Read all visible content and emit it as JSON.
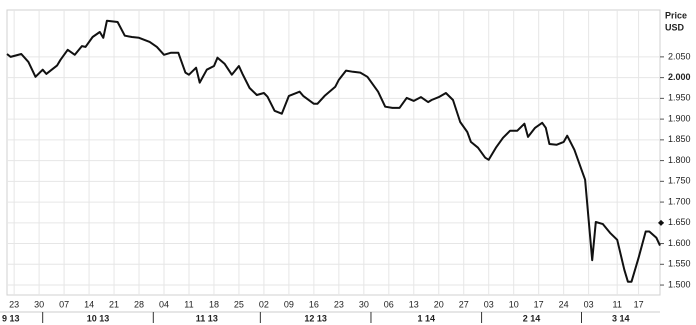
{
  "chart_data": {
    "type": "line",
    "y_label": "Price",
    "y_unit": "USD",
    "x": [
      "2013-09-21",
      "2013-09-22",
      "2013-09-25",
      "2013-09-27",
      "2013-09-29",
      "2013-10-01",
      "2013-10-02",
      "2013-10-05",
      "2013-10-06",
      "2013-10-08",
      "2013-10-10",
      "2013-10-12",
      "2013-10-13",
      "2013-10-15",
      "2013-10-17",
      "2013-10-18",
      "2013-10-19",
      "2013-10-22",
      "2013-10-24",
      "2013-10-26",
      "2013-10-28",
      "2013-10-31",
      "2013-11-02",
      "2013-11-04",
      "2013-11-06",
      "2013-11-08",
      "2013-11-10",
      "2013-11-11",
      "2013-11-13",
      "2013-11-14",
      "2013-11-16",
      "2013-11-18",
      "2013-11-19",
      "2013-11-21",
      "2013-11-23",
      "2013-11-25",
      "2013-11-26",
      "2013-11-28",
      "2013-11-30",
      "2013-12-02",
      "2013-12-03",
      "2013-12-05",
      "2013-12-07",
      "2013-12-09",
      "2013-12-12",
      "2013-12-13",
      "2013-12-16",
      "2013-12-17",
      "2013-12-19",
      "2013-12-22",
      "2013-12-23",
      "2013-12-25",
      "2013-12-27",
      "2013-12-29",
      "2013-12-31",
      "2014-01-03",
      "2014-01-05",
      "2014-01-07",
      "2014-01-09",
      "2014-01-11",
      "2014-01-13",
      "2014-01-15",
      "2014-01-17",
      "2014-01-18",
      "2014-01-20",
      "2014-01-22",
      "2014-01-24",
      "2014-01-26",
      "2014-01-28",
      "2014-01-29",
      "2014-01-31",
      "2014-02-02",
      "2014-02-03",
      "2014-02-05",
      "2014-02-07",
      "2014-02-09",
      "2014-02-11",
      "2014-02-13",
      "2014-02-14",
      "2014-02-16",
      "2014-02-18",
      "2014-02-19",
      "2014-02-20",
      "2014-02-22",
      "2014-02-24",
      "2014-02-25",
      "2014-02-27",
      "2014-03-01",
      "2014-03-02",
      "2014-03-04",
      "2014-03-05",
      "2014-03-07",
      "2014-03-09",
      "2014-03-11",
      "2014-03-13",
      "2014-03-14",
      "2014-03-15",
      "2014-03-17",
      "2014-03-19",
      "2014-03-20",
      "2014-03-22",
      "2014-03-23"
    ],
    "series": [
      {
        "color": "#111111",
        "values": [
          2057,
          2050,
          2057,
          2038,
          2002,
          2019,
          2009,
          2029,
          2043,
          2067,
          2055,
          2076,
          2074,
          2098,
          2110,
          2096,
          2137,
          2134,
          2101,
          2098,
          2096,
          2086,
          2074,
          2055,
          2060,
          2060,
          2012,
          2007,
          2024,
          1988,
          2019,
          2028,
          2048,
          2033,
          2007,
          2028,
          2009,
          1975,
          1958,
          1963,
          1954,
          1920,
          1913,
          1956,
          1966,
          1956,
          1937,
          1937,
          1956,
          1978,
          1995,
          2017,
          2014,
          2012,
          2002,
          1966,
          1930,
          1927,
          1927,
          1951,
          1944,
          1953,
          1941,
          1946,
          1953,
          1963,
          1946,
          1893,
          1869,
          1845,
          1831,
          1807,
          1802,
          1831,
          1855,
          1872,
          1872,
          1889,
          1857,
          1879,
          1891,
          1879,
          1840,
          1838,
          1845,
          1860,
          1826,
          1778,
          1754,
          1560,
          1652,
          1647,
          1626,
          1609,
          1537,
          1508,
          1508,
          1566,
          1629,
          1629,
          1614,
          1595
        ]
      }
    ],
    "xlim": [
      "2013-09-21",
      "2014-03-23"
    ],
    "xticks": [
      {
        "value": "2013-09-23",
        "label": "23"
      },
      {
        "value": "2013-09-30",
        "label": "30"
      },
      {
        "value": "2013-10-07",
        "label": "07"
      },
      {
        "value": "2013-10-14",
        "label": "14"
      },
      {
        "value": "2013-10-21",
        "label": "21"
      },
      {
        "value": "2013-10-28",
        "label": "28"
      },
      {
        "value": "2013-11-04",
        "label": "04"
      },
      {
        "value": "2013-11-11",
        "label": "11"
      },
      {
        "value": "2013-11-18",
        "label": "18"
      },
      {
        "value": "2013-11-25",
        "label": "25"
      },
      {
        "value": "2013-12-02",
        "label": "02"
      },
      {
        "value": "2013-12-09",
        "label": "09"
      },
      {
        "value": "2013-12-16",
        "label": "16"
      },
      {
        "value": "2013-12-23",
        "label": "23"
      },
      {
        "value": "2013-12-30",
        "label": "30"
      },
      {
        "value": "2014-01-06",
        "label": "06"
      },
      {
        "value": "2014-01-13",
        "label": "13"
      },
      {
        "value": "2014-01-20",
        "label": "20"
      },
      {
        "value": "2014-01-27",
        "label": "27"
      },
      {
        "value": "2014-02-03",
        "label": "03"
      },
      {
        "value": "2014-02-10",
        "label": "10"
      },
      {
        "value": "2014-02-17",
        "label": "17"
      },
      {
        "value": "2014-02-24",
        "label": "24"
      },
      {
        "value": "2014-03-03",
        "label": "03"
      },
      {
        "value": "2014-03-11",
        "label": "11"
      },
      {
        "value": "2014-03-17",
        "label": "17"
      }
    ],
    "month_labels": [
      {
        "value": "2013-09",
        "label": "9 13"
      },
      {
        "value": "2013-10",
        "label": "10 13"
      },
      {
        "value": "2013-11",
        "label": "11 13"
      },
      {
        "value": "2013-12",
        "label": "12 13"
      },
      {
        "value": "2014-01",
        "label": "1 14"
      },
      {
        "value": "2014-02",
        "label": "2 14"
      },
      {
        "value": "2014-03",
        "label": "3 14"
      }
    ],
    "ylim": [
      1476,
      2163
    ],
    "yticks": [
      {
        "value": 1500,
        "label": "1.500"
      },
      {
        "value": 1550,
        "label": "1.550"
      },
      {
        "value": 1600,
        "label": "1.600"
      },
      {
        "value": 1650,
        "label": "1.650"
      },
      {
        "value": 1700,
        "label": "1.700"
      },
      {
        "value": 1750,
        "label": "1.750"
      },
      {
        "value": 1800,
        "label": "1.800"
      },
      {
        "value": 1850,
        "label": "1.850"
      },
      {
        "value": 1900,
        "label": "1.900"
      },
      {
        "value": 1950,
        "label": "1.950"
      },
      {
        "value": 2000,
        "label": "2.000"
      },
      {
        "value": 2050,
        "label": "2.050"
      }
    ],
    "bold_ytick": 2000,
    "marker_ytick": 1650,
    "grid": true
  }
}
